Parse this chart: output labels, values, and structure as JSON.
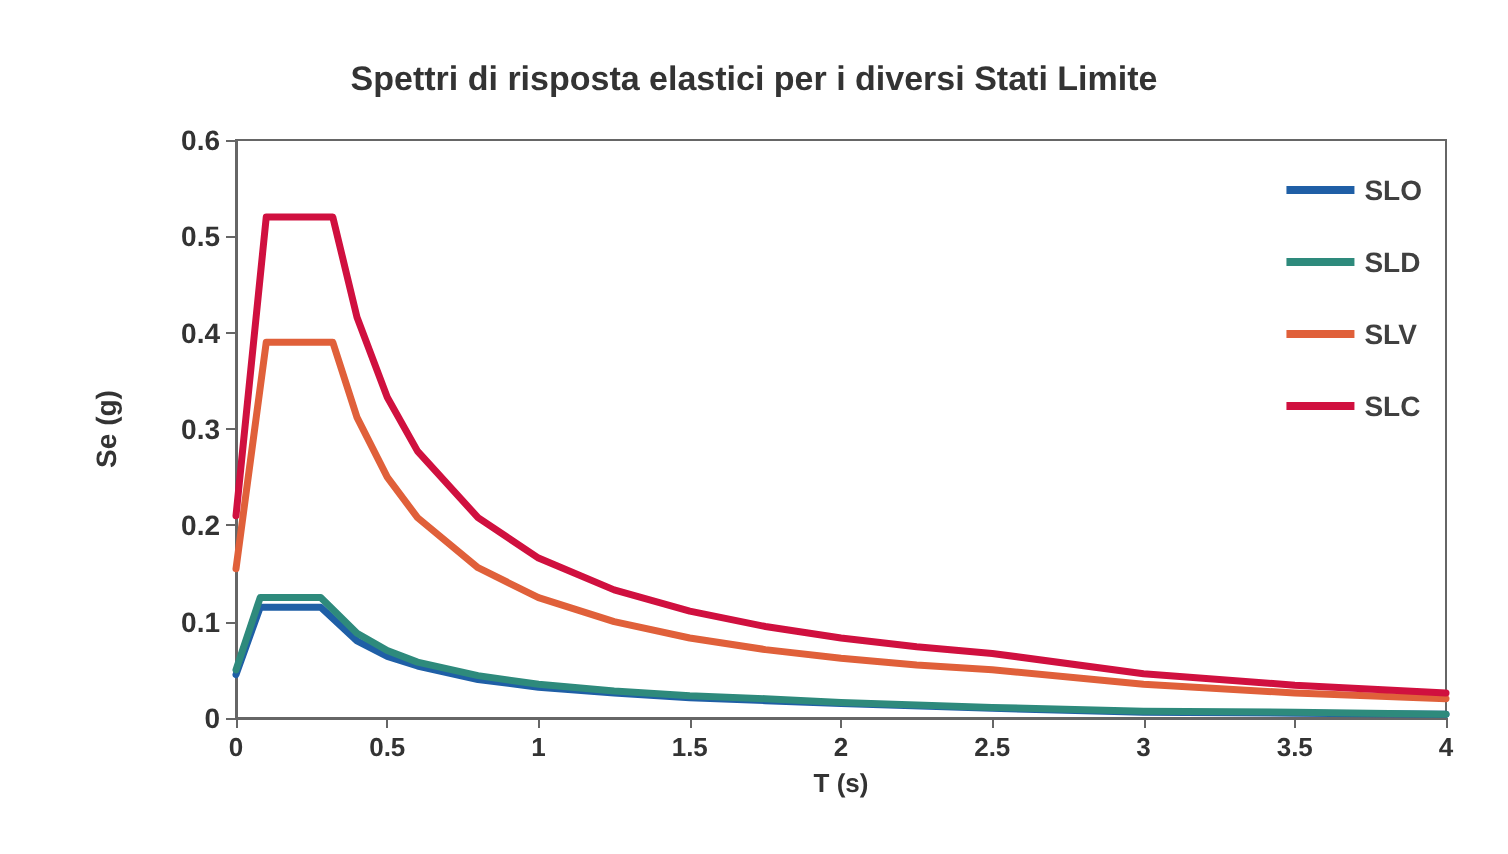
{
  "chart_data": {
    "type": "line",
    "title": "Spettri di risposta elastici per i diversi Stati Limite",
    "xlabel": "T (s)",
    "ylabel": "Se (g)",
    "xlim": [
      0,
      4
    ],
    "xticks": [
      0,
      0.5,
      1,
      1.5,
      2,
      2.5,
      3,
      3.5,
      4
    ],
    "ylim": [
      0,
      0.6
    ],
    "yticks": [
      0,
      0.1,
      0.2,
      0.3,
      0.4,
      0.5,
      0.6
    ],
    "grid": false,
    "legend": "top right",
    "marker": "none",
    "line_style": "solid",
    "series": [
      {
        "name": "SLO",
        "color": "#1f5fa6",
        "x": [
          0,
          0.08,
          0.28,
          0.4,
          0.5,
          0.6,
          0.8,
          1,
          1.25,
          1.5,
          1.75,
          2,
          2.5,
          3,
          3.5,
          4
        ],
        "values": [
          0.045,
          0.115,
          0.115,
          0.08,
          0.064,
          0.054,
          0.04,
          0.032,
          0.026,
          0.021,
          0.018,
          0.015,
          0.01,
          0.006,
          0.005,
          0.004
        ]
      },
      {
        "name": "SLD",
        "color": "#2e8a7c",
        "x": [
          0,
          0.08,
          0.28,
          0.4,
          0.5,
          0.6,
          0.8,
          1,
          1.25,
          1.5,
          1.75,
          2,
          2.5,
          3,
          3.5,
          4
        ],
        "values": [
          0.05,
          0.125,
          0.125,
          0.088,
          0.07,
          0.058,
          0.044,
          0.035,
          0.028,
          0.023,
          0.02,
          0.016,
          0.011,
          0.007,
          0.006,
          0.004
        ]
      },
      {
        "name": "SLV",
        "color": "#e0603a",
        "x": [
          0,
          0.1,
          0.32,
          0.4,
          0.5,
          0.6,
          0.8,
          1,
          1.25,
          1.5,
          1.75,
          2,
          2.25,
          2.5,
          3,
          3.5,
          4
        ],
        "values": [
          0.155,
          0.39,
          0.39,
          0.312,
          0.25,
          0.208,
          0.156,
          0.125,
          0.1,
          0.083,
          0.071,
          0.062,
          0.055,
          0.05,
          0.035,
          0.026,
          0.02
        ]
      },
      {
        "name": "SLC",
        "color": "#d0103f",
        "x": [
          0,
          0.1,
          0.32,
          0.4,
          0.5,
          0.6,
          0.8,
          1,
          1.25,
          1.5,
          1.75,
          2,
          2.25,
          2.5,
          3,
          3.5,
          4
        ],
        "values": [
          0.21,
          0.52,
          0.52,
          0.416,
          0.333,
          0.277,
          0.208,
          0.166,
          0.133,
          0.111,
          0.095,
          0.083,
          0.074,
          0.067,
          0.046,
          0.034,
          0.026
        ]
      }
    ]
  }
}
